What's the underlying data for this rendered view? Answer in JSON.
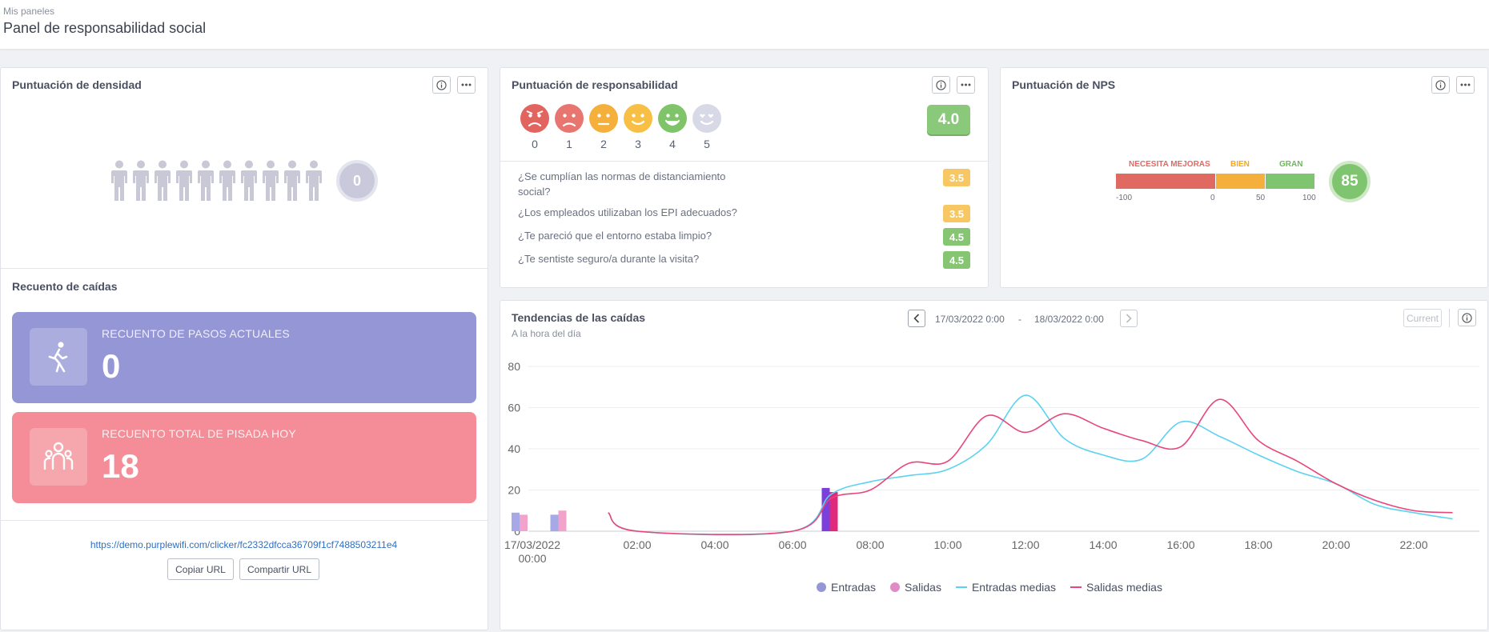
{
  "header": {
    "breadcrumb": "Mis paneles",
    "title": "Panel de responsabilidad social"
  },
  "density": {
    "title": "Puntuación de densidad",
    "value": "0",
    "people_count": 10
  },
  "falls": {
    "title": "Recuento de caídas",
    "current": {
      "label": "RECUENTO DE PASOS ACTUALES",
      "value": "0",
      "color": "#9496d6"
    },
    "total": {
      "label": "RECUENTO TOTAL DE PISADA HOY",
      "value": "18",
      "color": "#f48d97"
    },
    "url": "https://demo.purplewifi.com/clicker/fc2332dfcca36709f1cf7488503211e4",
    "copy_label": "Copiar URL",
    "share_label": "Compartir URL"
  },
  "responsibility": {
    "title": "Puntuación de responsabilidad",
    "score": "4.0",
    "faces": [
      {
        "n": "0",
        "color": "#e2645e"
      },
      {
        "n": "1",
        "color": "#e87570"
      },
      {
        "n": "2",
        "color": "#f5b03b"
      },
      {
        "n": "3",
        "color": "#f7c045"
      },
      {
        "n": "4",
        "color": "#80c46a"
      },
      {
        "n": "5",
        "color": "#d8d9e6"
      }
    ],
    "questions": [
      {
        "text": "¿Se cumplían las normas de distanciamiento social?",
        "score": "3.5",
        "color": "#f6c762"
      },
      {
        "text": "¿Los empleados utilizaban los EPI adecuados?",
        "score": "3.5",
        "color": "#f6c762"
      },
      {
        "text": "¿Te pareció que el entorno estaba limpio?",
        "score": "4.5",
        "color": "#86c673"
      },
      {
        "text": "¿Te sentiste seguro/a durante la visita?",
        "score": "4.5",
        "color": "#86c673"
      }
    ]
  },
  "nps": {
    "title": "Puntuación de NPS",
    "labels": {
      "bad": "NECESITA MEJORAS",
      "good": "BIEN",
      "great": "GRAN"
    },
    "ticks": [
      "-100",
      "0",
      "50",
      "100"
    ],
    "colors": {
      "bad": "#e06a62",
      "good": "#f5b03b",
      "great": "#7fc46f"
    },
    "score": "85"
  },
  "trends": {
    "title": "Tendencias de las caídas",
    "subtitle": "A la hora del día",
    "date_from": "17/03/2022 0:00",
    "date_sep": "-",
    "date_to": "18/03/2022 0:00",
    "current_label": "Current"
  },
  "chart_data": {
    "type": "line",
    "x_ticks": [
      "17/03/2022 00:00",
      "02:00",
      "04:00",
      "06:00",
      "08:00",
      "10:00",
      "12:00",
      "14:00",
      "16:00",
      "18:00",
      "20:00",
      "22:00"
    ],
    "ylim": [
      0,
      80
    ],
    "y_ticks": [
      0,
      20,
      40,
      60,
      80
    ],
    "grid": true,
    "legend_position": "bottom",
    "bars": [
      {
        "name": "Entradas",
        "color": "#a7a8e6",
        "points": [
          [
            0,
            9
          ],
          [
            1,
            8
          ]
        ]
      },
      {
        "name": "Salidas",
        "color": "#f2a3cc",
        "points": [
          [
            0,
            8
          ],
          [
            1,
            10
          ]
        ]
      },
      {
        "name": "Entradas",
        "color": "#7b3fdc",
        "points": [
          [
            7,
            21
          ]
        ]
      },
      {
        "name": "Salidas",
        "color": "#e0287c",
        "points": [
          [
            7,
            19
          ]
        ]
      }
    ],
    "series": [
      {
        "name": "Entradas medias",
        "color": "#5bd2f0",
        "kind": "line",
        "points": [
          [
            1.5,
            9
          ],
          [
            2,
            0
          ],
          [
            6,
            0
          ],
          [
            7,
            18
          ],
          [
            8,
            24
          ],
          [
            9,
            27
          ],
          [
            10,
            30
          ],
          [
            11,
            42
          ],
          [
            12,
            66
          ],
          [
            13,
            45
          ],
          [
            14,
            37
          ],
          [
            15,
            35
          ],
          [
            16,
            53
          ],
          [
            17,
            46
          ],
          [
            18,
            37
          ],
          [
            19,
            29
          ],
          [
            20,
            23
          ],
          [
            21,
            13
          ],
          [
            22,
            9
          ],
          [
            23,
            6
          ]
        ]
      },
      {
        "name": "Salidas medias",
        "color": "#e8467a",
        "kind": "line",
        "points": [
          [
            1.5,
            9
          ],
          [
            2,
            0
          ],
          [
            6,
            0
          ],
          [
            7,
            16
          ],
          [
            8,
            20
          ],
          [
            9,
            33
          ],
          [
            10,
            34
          ],
          [
            11,
            56
          ],
          [
            12,
            48
          ],
          [
            13,
            57
          ],
          [
            14,
            50
          ],
          [
            15,
            44
          ],
          [
            16,
            41
          ],
          [
            17,
            64
          ],
          [
            18,
            44
          ],
          [
            19,
            34
          ],
          [
            20,
            23
          ],
          [
            21,
            15
          ],
          [
            22,
            10
          ],
          [
            23,
            9
          ]
        ]
      }
    ]
  },
  "legend": {
    "entries": [
      {
        "label": "Entradas",
        "type": "dot",
        "color": "#9496d6"
      },
      {
        "label": "Salidas",
        "type": "dot",
        "color": "#e08bc6"
      },
      {
        "label": "Entradas medias",
        "type": "line",
        "color": "#5bd2f0"
      },
      {
        "label": "Salidas medias",
        "type": "line",
        "color": "#e8467a"
      }
    ]
  },
  "icons": {
    "info": "info-icon",
    "more": "ellipsis-icon",
    "walk": "walking-person-icon",
    "group": "group-people-icon"
  }
}
